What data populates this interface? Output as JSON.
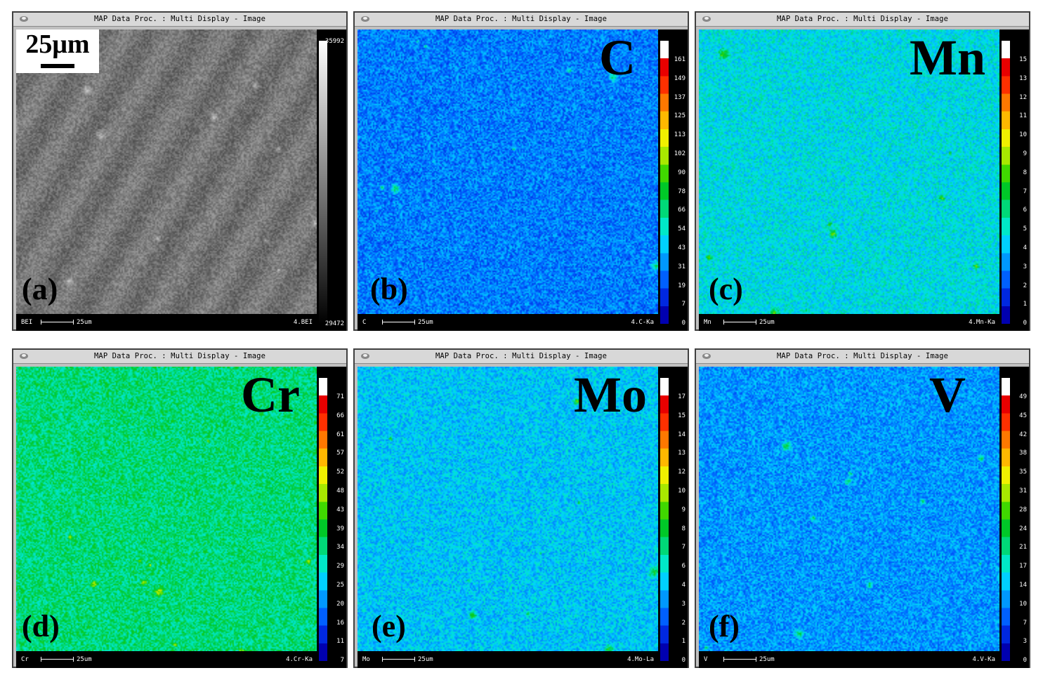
{
  "window_title": "MAP Data Proc. : Multi Display - Image",
  "scale_marker": "25μm",
  "status_scale": "25um",
  "panels": [
    {
      "id": "a",
      "label": "(a)",
      "element": "",
      "status_left": "BEI",
      "status_right": "4.BEI",
      "palette": "gray",
      "base_level": 0.5,
      "scale_ticks": [
        "35992",
        "29472"
      ]
    },
    {
      "id": "b",
      "label": "(b)",
      "element": "C",
      "status_left": "C",
      "status_right": "4.C-Ka",
      "palette": "spectrum",
      "base_level": 0.17,
      "scale_ticks": [
        "161",
        "149",
        "137",
        "125",
        "113",
        "102",
        "90",
        "78",
        "66",
        "54",
        "43",
        "31",
        "19",
        "7",
        "0"
      ]
    },
    {
      "id": "c",
      "label": "(c)",
      "element": "Mn",
      "status_left": "Mn",
      "status_right": "4.Mn-Ka",
      "palette": "spectrum",
      "base_level": 0.3,
      "scale_ticks": [
        "15",
        "13",
        "12",
        "11",
        "10",
        "9",
        "8",
        "7",
        "6",
        "5",
        "4",
        "3",
        "2",
        "1",
        "0"
      ]
    },
    {
      "id": "d",
      "label": "(d)",
      "element": "Cr",
      "status_left": "Cr",
      "status_right": "4.Cr-Ka",
      "palette": "spectrum",
      "base_level": 0.4,
      "scale_ticks": [
        "71",
        "66",
        "61",
        "57",
        "52",
        "48",
        "43",
        "39",
        "34",
        "29",
        "25",
        "20",
        "16",
        "11",
        "7"
      ]
    },
    {
      "id": "e",
      "label": "(e)",
      "element": "Mo",
      "status_left": "Mo",
      "status_right": "4.Mo-La",
      "palette": "spectrum",
      "base_level": 0.26,
      "scale_ticks": [
        "17",
        "15",
        "14",
        "13",
        "12",
        "10",
        "9",
        "8",
        "7",
        "6",
        "4",
        "3",
        "2",
        "1",
        "0"
      ]
    },
    {
      "id": "f",
      "label": "(f)",
      "element": "V",
      "status_left": "V",
      "status_right": "4.V-Ka",
      "palette": "spectrum",
      "base_level": 0.2,
      "scale_ticks": [
        "49",
        "45",
        "42",
        "38",
        "35",
        "31",
        "28",
        "24",
        "21",
        "17",
        "14",
        "10",
        "7",
        "3",
        "0"
      ]
    }
  ]
}
